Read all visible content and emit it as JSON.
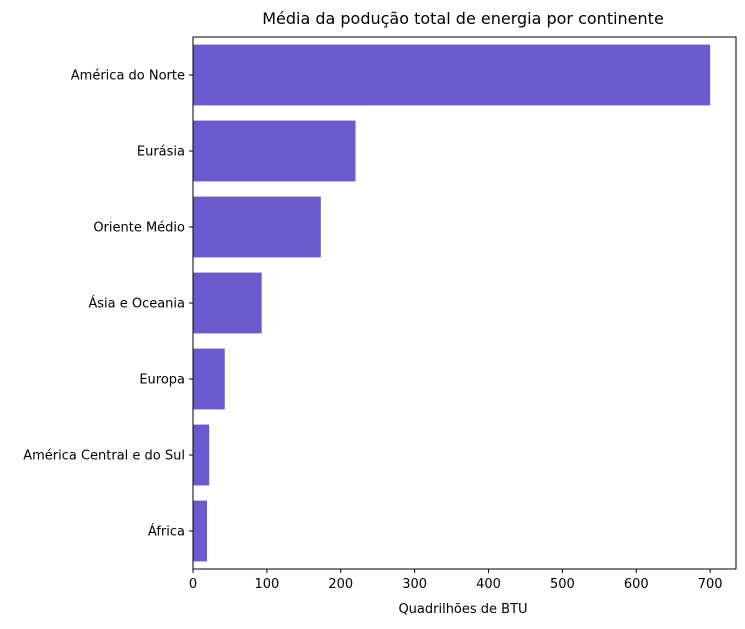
{
  "chart_data": {
    "type": "bar",
    "orientation": "horizontal",
    "title": "Média da podução total de energia por continente",
    "xlabel": "Quadrilhões de BTU",
    "ylabel": "",
    "categories": [
      "América do Norte",
      "Eurásia",
      "Oriente Médio",
      "Ásia e Oceania",
      "Europa",
      "América Central e do Sul",
      "África"
    ],
    "values": [
      700,
      220,
      173,
      93,
      43,
      22,
      19
    ],
    "xlim": [
      0,
      735
    ],
    "xticks": [
      0,
      100,
      200,
      300,
      400,
      500,
      600,
      700
    ],
    "bar_color": "#6a5acd",
    "grid": false,
    "legend": false
  }
}
